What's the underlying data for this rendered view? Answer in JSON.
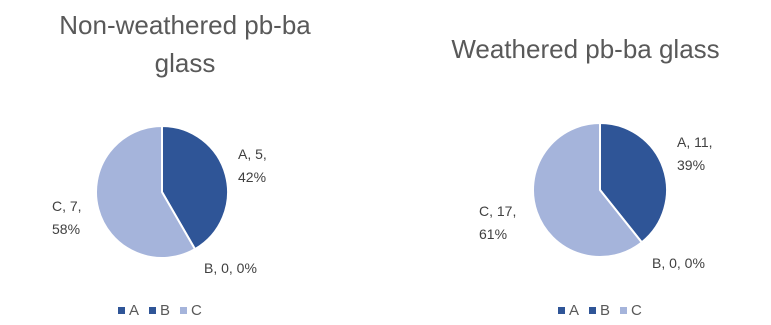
{
  "colors": {
    "A": "#2f5597",
    "B": "#8eaadb",
    "C": "#a5b4db"
  },
  "chart_data": [
    {
      "type": "pie",
      "title": "Non-weathered pb-ba glass",
      "categories": [
        "A",
        "B",
        "C"
      ],
      "values": [
        5,
        0,
        7
      ],
      "percents": [
        "42%",
        "0%",
        "58%"
      ],
      "data_labels": [
        "A, 5, 42%",
        "B, 0, 0%",
        "C, 7, 58%"
      ],
      "legend": [
        "A",
        "B",
        "C"
      ],
      "legend_position": "bottom"
    },
    {
      "type": "pie",
      "title": "Weathered pb-ba glass",
      "categories": [
        "A",
        "B",
        "C"
      ],
      "values": [
        11,
        0,
        17
      ],
      "percents": [
        "39%",
        "0%",
        "61%"
      ],
      "data_labels": [
        "A, 11, 39%",
        "B, 0, 0%",
        "C, 17, 61%"
      ],
      "legend": [
        "A",
        "B",
        "C"
      ],
      "legend_position": "bottom"
    }
  ]
}
